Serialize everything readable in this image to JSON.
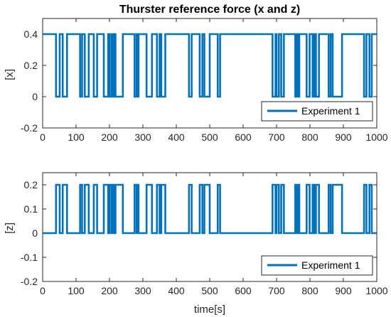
{
  "chart_data": [
    {
      "type": "line",
      "title": "Thurster reference force (x and z)",
      "xlabel": "",
      "ylabel": "[x]",
      "xlim": [
        0,
        1000
      ],
      "ylim": [
        -0.2,
        0.5
      ],
      "xticks": [
        "0",
        "100",
        "200",
        "300",
        "400",
        "500",
        "600",
        "700",
        "800",
        "900",
        "1000"
      ],
      "yticks": [
        "-0.2",
        "0",
        "0.2",
        "0.4"
      ],
      "grid": false,
      "legend_position": "bottom-right",
      "series": [
        {
          "name": "Experiment 1",
          "color": "#0072BD",
          "high": 0.4,
          "low": 0,
          "low_intervals": [
            [
              40,
              51
            ],
            [
              60,
              73
            ],
            [
              112,
              118
            ],
            [
              126,
              138
            ],
            [
              153,
              163
            ],
            [
              183,
              196
            ],
            [
              200,
              206
            ],
            [
              210,
              214
            ],
            [
              218,
              240
            ],
            [
              275,
              281
            ],
            [
              284,
              287
            ],
            [
              311,
              327
            ],
            [
              342,
              350
            ],
            [
              355,
              367
            ],
            [
              438,
              446
            ],
            [
              470,
              478
            ],
            [
              484,
              500
            ],
            [
              524,
              531
            ],
            [
              688,
              697
            ],
            [
              700,
              707
            ],
            [
              714,
              722
            ],
            [
              756,
              760
            ],
            [
              765,
              768
            ],
            [
              790,
              799
            ],
            [
              808,
              813
            ],
            [
              818,
              827
            ],
            [
              856,
              862
            ],
            [
              868,
              896
            ],
            [
              962,
              969
            ],
            [
              978,
              985
            ]
          ]
        }
      ]
    },
    {
      "type": "line",
      "title": "",
      "xlabel": "time[s]",
      "ylabel": "[z]",
      "xlim": [
        0,
        1000
      ],
      "ylim": [
        -0.2,
        0.25
      ],
      "xticks": [
        "0",
        "100",
        "200",
        "300",
        "400",
        "500",
        "600",
        "700",
        "800",
        "900",
        "1000"
      ],
      "yticks": [
        "-0.2",
        "-0.1",
        "0",
        "0.1",
        "0.2"
      ],
      "grid": false,
      "legend_position": "bottom-right",
      "series": [
        {
          "name": "Experiment 1",
          "color": "#0072BD",
          "high": 0.2,
          "low": 0,
          "high_intervals": [
            [
              40,
              51
            ],
            [
              60,
              73
            ],
            [
              112,
              118
            ],
            [
              126,
              138
            ],
            [
              153,
              163
            ],
            [
              183,
              196
            ],
            [
              200,
              206
            ],
            [
              210,
              214
            ],
            [
              218,
              240
            ],
            [
              275,
              281
            ],
            [
              284,
              287
            ],
            [
              311,
              327
            ],
            [
              342,
              350
            ],
            [
              355,
              367
            ],
            [
              438,
              446
            ],
            [
              470,
              478
            ],
            [
              484,
              500
            ],
            [
              524,
              531
            ],
            [
              688,
              697
            ],
            [
              700,
              707
            ],
            [
              714,
              722
            ],
            [
              756,
              760
            ],
            [
              765,
              768
            ],
            [
              790,
              799
            ],
            [
              808,
              813
            ],
            [
              818,
              827
            ],
            [
              856,
              862
            ],
            [
              868,
              896
            ],
            [
              962,
              969
            ],
            [
              978,
              985
            ]
          ]
        }
      ]
    }
  ]
}
